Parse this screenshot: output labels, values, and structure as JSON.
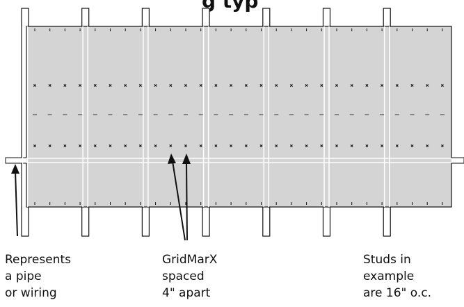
{
  "title_fragment": "g typ",
  "diagram": {
    "stud_count": 7,
    "gridmarx_rows": [
      "x",
      "-",
      "x"
    ],
    "colors": {
      "panel_fill": "#d4d4d4",
      "stroke": "#111111",
      "stud_fill": "#ffffff",
      "background": "#ffffff"
    }
  },
  "labels": {
    "pipe": [
      "Represents",
      "a pipe",
      "or wiring"
    ],
    "gridmarx": [
      "GridMarX",
      "spaced",
      "4\" apart"
    ],
    "studs": [
      "Studs in",
      "example",
      "are 16\" o.c."
    ]
  }
}
